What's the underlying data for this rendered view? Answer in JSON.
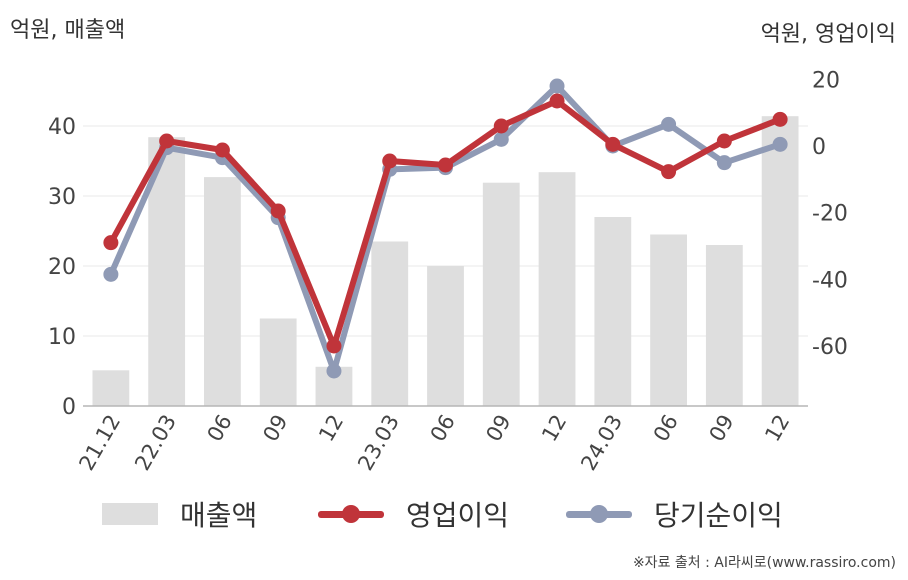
{
  "chart_data": {
    "type": "bar+line",
    "y_left_label": "억원, 매출액",
    "y_right_label": "억원, 영업이익",
    "categories": [
      "21.12",
      "22.03",
      "06",
      "09",
      "12",
      "23.03",
      "06",
      "09",
      "12",
      "24.03",
      "06",
      "09",
      "12"
    ],
    "ylim_left": [
      0,
      50
    ],
    "yticks_left": [
      "0",
      "10",
      "20",
      "30",
      "40"
    ],
    "ylim_right": [
      -78,
      27
    ],
    "yticks_right": [
      "-60",
      "-40",
      "-20",
      "0",
      "20"
    ],
    "series": [
      {
        "name": "매출액",
        "type": "bar",
        "axis": "left",
        "color": "#dedede",
        "values": [
          5.1,
          38.4,
          32.7,
          12.5,
          5.6,
          23.5,
          20.0,
          31.9,
          33.4,
          27.0,
          24.5,
          23.0,
          41.4
        ]
      },
      {
        "name": "영업이익",
        "type": "line",
        "axis": "right",
        "color": "#c0343a",
        "values": [
          -29,
          1.5,
          -1.2,
          -19.5,
          -60,
          -4.5,
          -5.7,
          6,
          13.5,
          0.5,
          -7.7,
          1.5,
          8
        ]
      },
      {
        "name": "당기순이익",
        "type": "line",
        "axis": "right",
        "color": "#8f9ab5",
        "values": [
          -38.5,
          -0.5,
          -3.5,
          -21.5,
          -67.5,
          -7,
          -6.5,
          2,
          18,
          0,
          6.5,
          -5,
          0.5
        ]
      }
    ],
    "legend": "bottom",
    "grid": true
  },
  "source": "※자료 출처 : AI라씨로(www.rassiro.com)"
}
